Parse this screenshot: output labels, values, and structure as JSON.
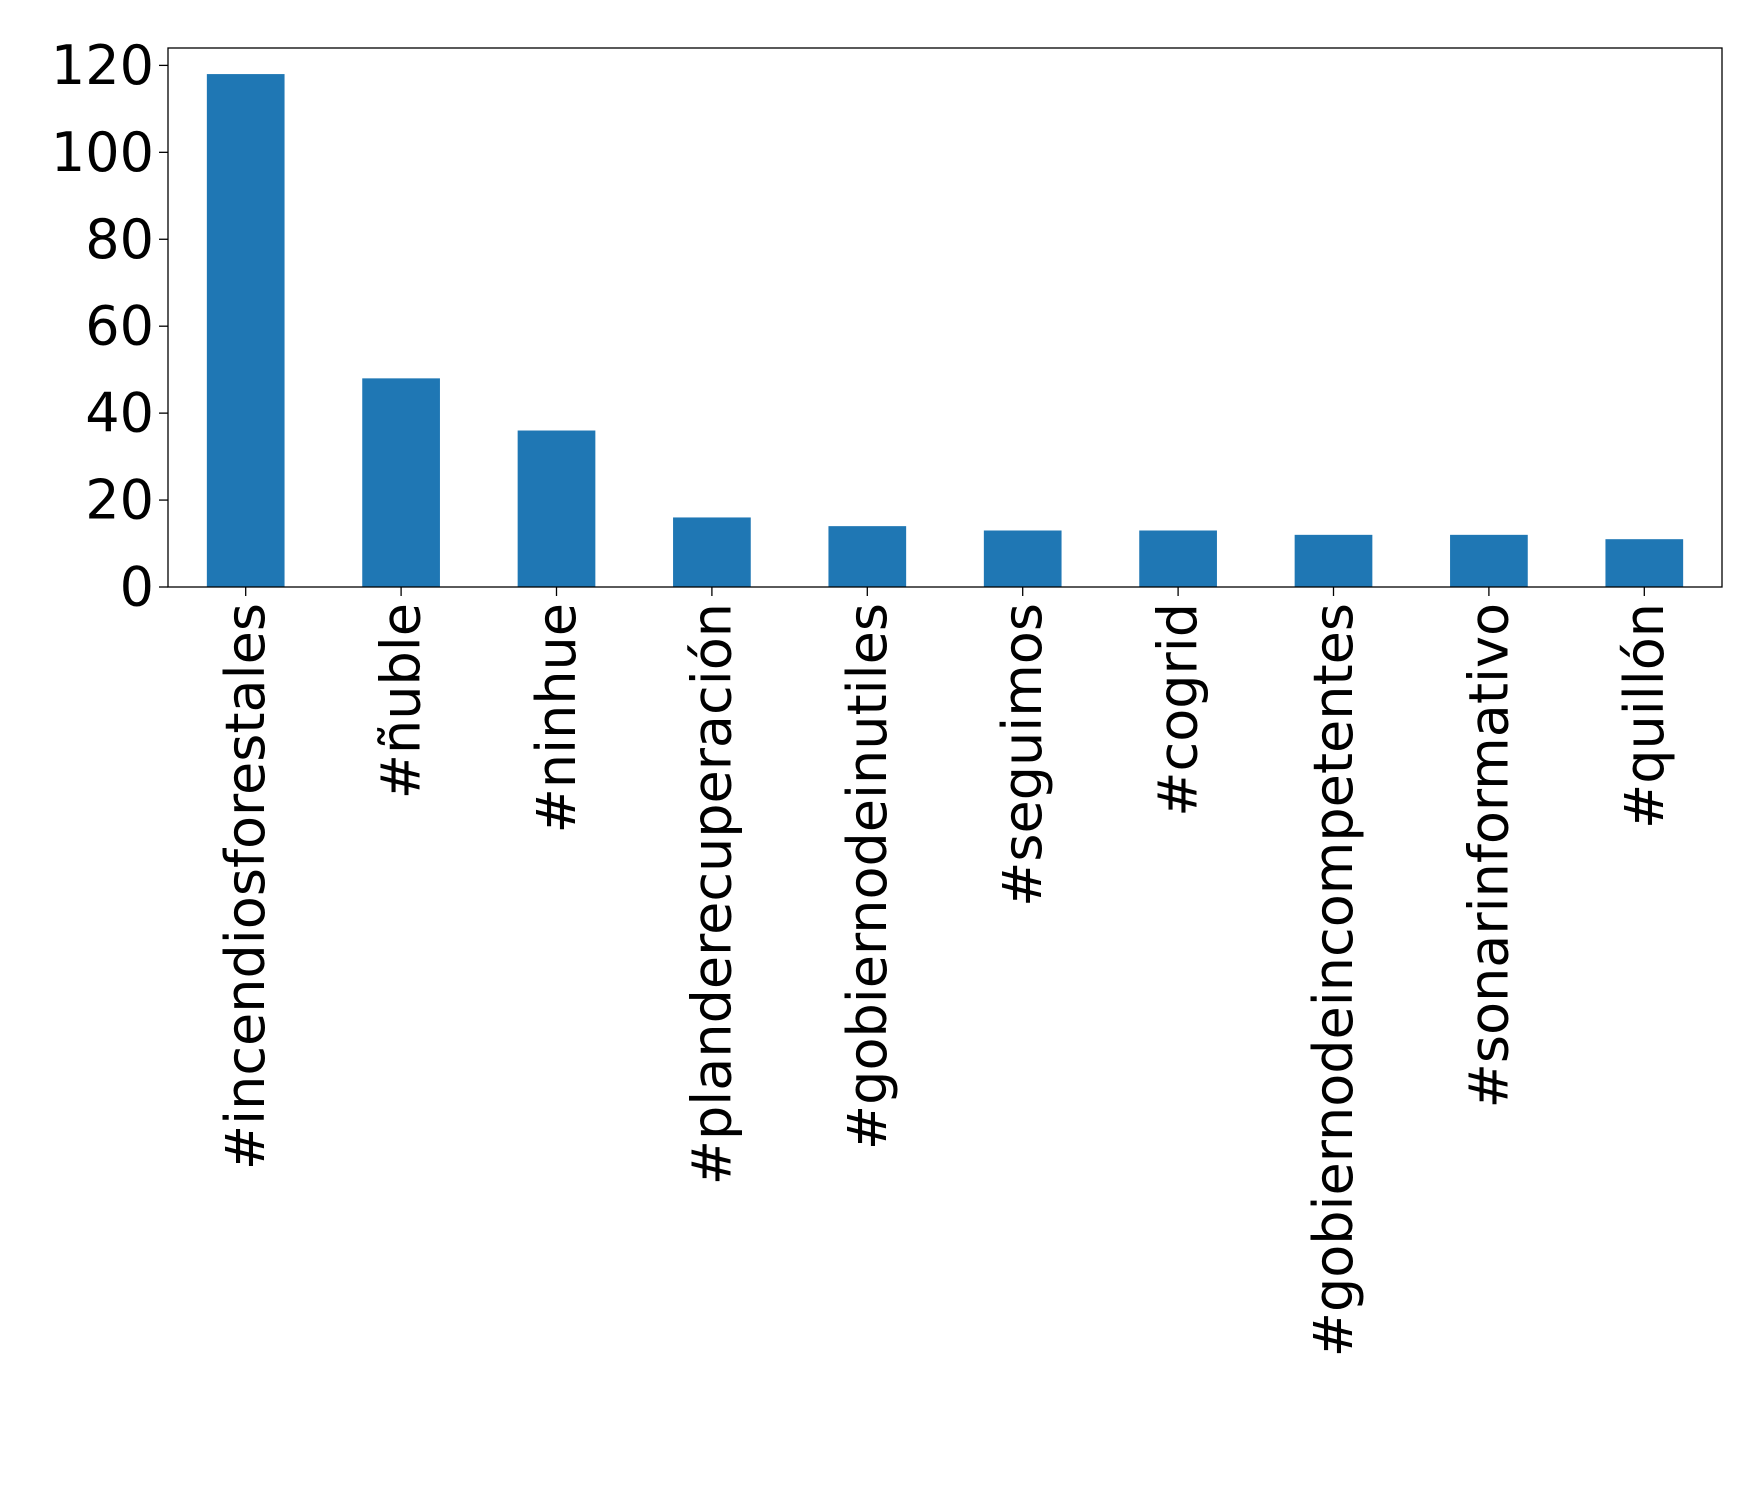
{
  "chart_data": {
    "type": "bar",
    "title": "",
    "xlabel": "",
    "ylabel": "",
    "categories": [
      "#incendiosforestales",
      "#ñuble",
      "#ninhue",
      "#planderecuperación",
      "#gobiernodeinutiles",
      "#seguimos",
      "#cogrid",
      "#gobiernodeincompetentes",
      "#sonarinformativo",
      "#quillón"
    ],
    "values": [
      118,
      48,
      36,
      16,
      14,
      13,
      13,
      12,
      12,
      11
    ],
    "ylim": [
      0,
      124
    ],
    "yticks": [
      0,
      20,
      40,
      60,
      80,
      100,
      120
    ],
    "grid": false,
    "legend": "none",
    "bar_color": "#1f77b4"
  }
}
